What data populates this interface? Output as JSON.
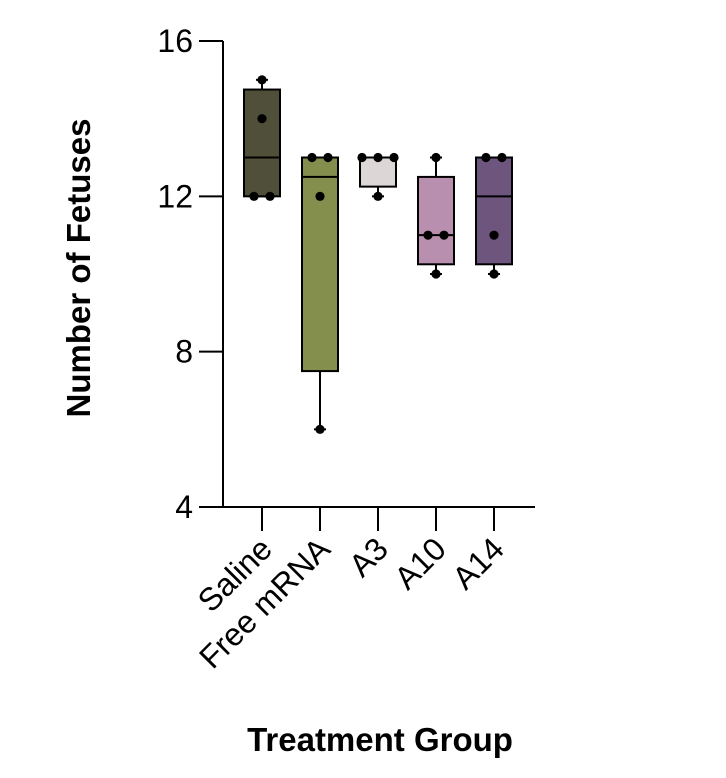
{
  "chart_data": {
    "type": "box",
    "xlabel": "Treatment Group",
    "ylabel": "Number of Fetuses",
    "ylim": [
      4,
      16
    ],
    "yticks": [
      4,
      8,
      12,
      16
    ],
    "grid": false,
    "categories": [
      "Saline",
      "Free mRNA",
      "A3",
      "A10",
      "A14"
    ],
    "groups": [
      {
        "name": "Saline",
        "color": "#4f4f3a",
        "min": 12,
        "q1": 12,
        "median": 13,
        "q3": 14.75,
        "max": 15,
        "points": [
          15,
          14,
          12,
          12
        ]
      },
      {
        "name": "Free mRNA",
        "color": "#848f4e",
        "min": 6,
        "q1": 7.5,
        "median": 12.5,
        "q3": 13,
        "max": 13,
        "points": [
          13,
          13,
          12,
          6
        ]
      },
      {
        "name": "A3",
        "color": "#ddd6d6",
        "min": 12,
        "q1": 12.25,
        "median": 13,
        "q3": 13,
        "max": 13,
        "points": [
          13,
          13,
          13,
          12
        ]
      },
      {
        "name": "A10",
        "color": "#b98fb0",
        "min": 10,
        "q1": 10.25,
        "median": 11,
        "q3": 12.5,
        "max": 13,
        "points": [
          13,
          11,
          11,
          10
        ]
      },
      {
        "name": "A14",
        "color": "#6e557e",
        "min": 10,
        "q1": 10.25,
        "median": 12,
        "q3": 13,
        "max": 13,
        "points": [
          13,
          13,
          11,
          10
        ]
      }
    ]
  }
}
